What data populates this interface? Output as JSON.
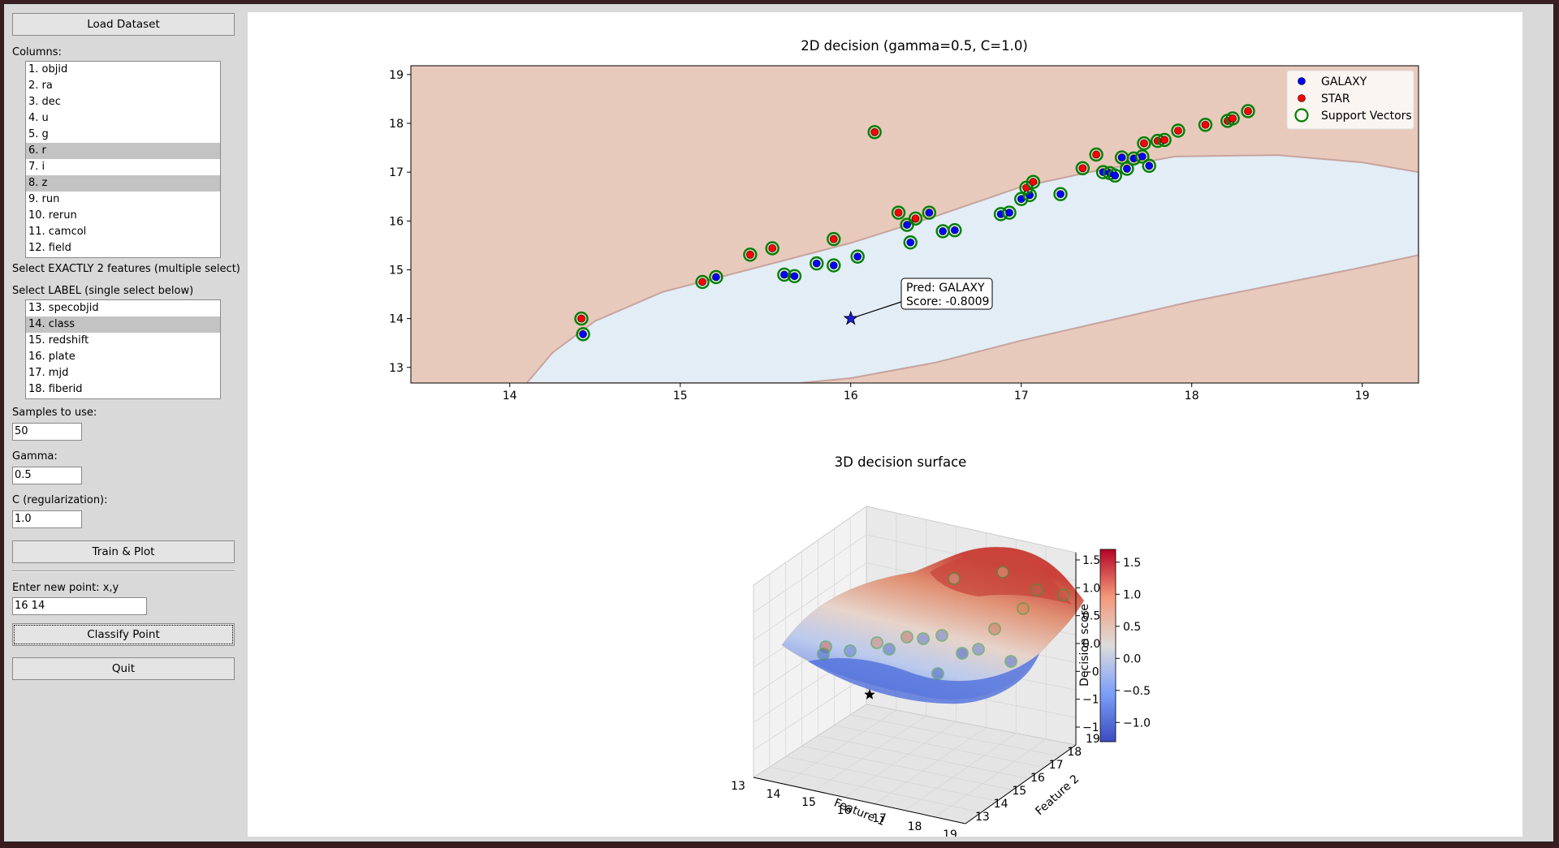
{
  "sidebar": {
    "load_button": "Load Dataset",
    "columns_label": "Columns:",
    "columns": [
      "1. objid",
      "2. ra",
      "3. dec",
      "4. u",
      "5. g",
      "6. r",
      "7. i",
      "8. z",
      "9. run",
      "10. rerun",
      "11. camcol",
      "12. field"
    ],
    "features_hint": "Select EXACTLY 2 features (multiple select)",
    "label_hint": "Select LABEL (single select below)",
    "label_columns": [
      "13. specobjid",
      "14. class",
      "15. redshift",
      "16. plate",
      "17. mjd",
      "18. fiberid"
    ],
    "samples_label": "Samples to use:",
    "samples_value": "50",
    "gamma_label": "Gamma:",
    "gamma_value": "0.5",
    "c_label": "C (regularization):",
    "c_value": "1.0",
    "train_button": "Train & Plot",
    "point_label": "Enter new point: x,y",
    "point_value": "16 14",
    "classify_button": "Classify Point",
    "quit_button": "Quit"
  },
  "chart_data": [
    {
      "type": "scatter",
      "title": "2D decision (gamma=0.5, C=1.0)",
      "xlim": [
        13.42,
        19.33
      ],
      "ylim": [
        12.68,
        19.18
      ],
      "xticks": [
        "14",
        "15",
        "16",
        "17",
        "18",
        "19"
      ],
      "yticks": [
        "13",
        "14",
        "15",
        "16",
        "17",
        "18",
        "19"
      ],
      "legend_position": "top-right",
      "legend": [
        "GALAXY",
        "STAR",
        "Support Vectors"
      ],
      "colors": {
        "galaxy": "#0000ff",
        "star": "#ff0000",
        "support_vectors": "#008000",
        "galaxy_region": "#e2edf6",
        "star_region": "#e8cabd",
        "boundary": "#c7a39e"
      },
      "series": [
        {
          "name": "GALAXY",
          "x": [
            14.43,
            15.21,
            15.61,
            15.67,
            15.8,
            15.9,
            16.04,
            16.33,
            16.35,
            16.46,
            16.54,
            16.61,
            16.88,
            16.93,
            17.0,
            17.05,
            17.23,
            17.48,
            17.52,
            17.55,
            17.59,
            17.62,
            17.66,
            17.71,
            17.75
          ],
          "y": [
            13.68,
            14.85,
            14.9,
            14.87,
            15.13,
            15.09,
            15.27,
            15.92,
            15.56,
            16.17,
            15.79,
            15.81,
            16.14,
            16.17,
            16.45,
            16.53,
            16.55,
            17.0,
            16.98,
            16.93,
            17.3,
            17.07,
            17.28,
            17.32,
            17.13
          ]
        },
        {
          "name": "STAR",
          "x": [
            14.42,
            15.13,
            15.41,
            15.54,
            15.9,
            16.14,
            16.28,
            16.38,
            17.03,
            17.07,
            17.36,
            17.44,
            17.72,
            17.8,
            17.84,
            17.92,
            18.08,
            18.21,
            18.24,
            18.33
          ],
          "y": [
            14.0,
            14.75,
            15.31,
            15.44,
            15.63,
            17.82,
            16.17,
            16.05,
            16.68,
            16.8,
            17.08,
            17.36,
            17.59,
            17.64,
            17.66,
            17.85,
            17.97,
            18.05,
            18.1,
            18.25
          ]
        },
        {
          "name": "Support Vectors",
          "note_every_point": true
        }
      ],
      "new_point": {
        "x": 16.0,
        "y": 14.0,
        "annotation_line1": "Pred: GALAXY",
        "annotation_line2": "Score: -0.8009"
      }
    },
    {
      "type": "surface",
      "title": "3D decision surface",
      "xlabel": "Feature 1",
      "ylabel": "Feature 2",
      "colorbar_label": "Decision score",
      "x_ticks": [
        "13",
        "14",
        "15",
        "16",
        "17",
        "18",
        "19"
      ],
      "y_ticks": [
        "13",
        "14",
        "15",
        "16",
        "17",
        "18",
        "19"
      ],
      "z_ticks": [
        "−1.5",
        "−1.0",
        "−0.5",
        "0.0",
        "0.5",
        "1.0",
        "1.5"
      ],
      "colorbar_ticks": [
        "1.5",
        "1.0",
        "0.5",
        "0.0",
        "−0.5",
        "−1.0"
      ],
      "colorbar_range": [
        -1.3,
        1.7
      ],
      "colormap": "coolwarm"
    }
  ]
}
